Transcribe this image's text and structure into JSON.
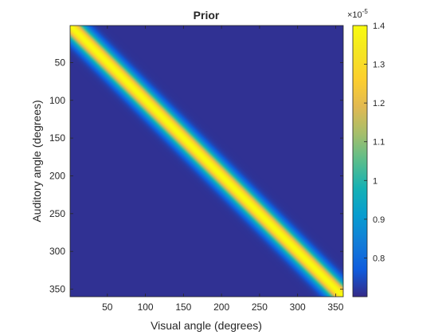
{
  "chart_data": {
    "type": "heatmap",
    "title": "Prior",
    "xlabel": "Visual angle (degrees)",
    "ylabel": "Auditory angle (degrees)",
    "xlim": [
      1,
      360
    ],
    "ylim": [
      1,
      360
    ],
    "y_reversed": true,
    "x_ticks": [
      "50",
      "100",
      "150",
      "200",
      "250",
      "300",
      "350"
    ],
    "y_ticks": [
      "50",
      "100",
      "150",
      "200",
      "250",
      "300",
      "350"
    ],
    "colorbar": {
      "exponent_label": "×10",
      "exponent_power": "-5",
      "range": [
        0.7,
        1.4
      ],
      "ticks": [
        "0.8",
        "0.9",
        "1",
        "1.1",
        "1.2",
        "1.3",
        "1.4"
      ]
    },
    "colormap": "parula",
    "surface": "diagonal ridge along visual angle = auditory angle; maximum 1.4e-5 on the diagonal, background ≈ 0.71e-5, ridge half-width about 12 degrees"
  }
}
